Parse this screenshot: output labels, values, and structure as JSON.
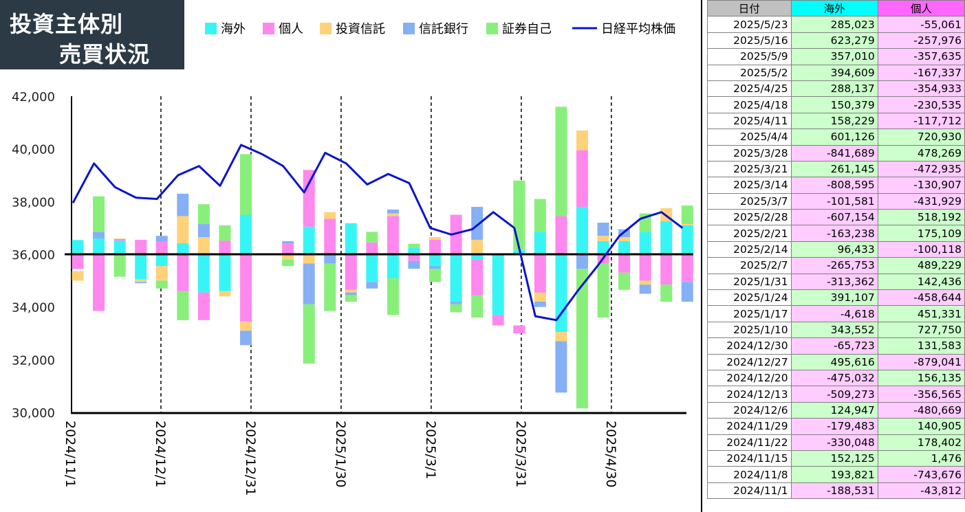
{
  "title": {
    "line1": "投資主体別",
    "line2": "売買状況"
  },
  "colors": {
    "foreign": "#38f5f5",
    "individual": "#ff88ee",
    "trust": "#ffd27a",
    "trust_bank": "#86b0f5",
    "securities": "#88f07a",
    "nikkei": "#0a14cc",
    "positive_cell": "#ccffcc",
    "negative_cell": "#ffccff"
  },
  "chart_data": {
    "type": "bar",
    "stacked": true,
    "legend": [
      {
        "name": "海外",
        "color": "#38f5f5"
      },
      {
        "name": "個人",
        "color": "#ff88ee"
      },
      {
        "name": "投資信託",
        "color": "#ffd27a"
      },
      {
        "name": "信託銀行",
        "color": "#86b0f5"
      },
      {
        "name": "証券自己",
        "color": "#88f07a"
      },
      {
        "name": "日経平均株価",
        "color": "#0a14cc",
        "kind": "line"
      }
    ],
    "legend_position": "top",
    "y_axis": {
      "min": 30000,
      "max": 42000,
      "ticks": [
        "30,000",
        "32,000",
        "34,000",
        "36,000",
        "38,000",
        "40,000",
        "42,000"
      ],
      "baseline": 36000
    },
    "x_tick_labels": [
      "2024/11/1",
      "2024/12/1",
      "2024/12/31",
      "2025/1/30",
      "2025/3/1",
      "2025/3/31",
      "2025/4/30"
    ],
    "x_domain_days": 205,
    "weeks": [
      "2024/11/1",
      "2024/11/8",
      "2024/11/15",
      "2024/11/22",
      "2024/11/29",
      "2024/12/6",
      "2024/12/13",
      "2024/12/20",
      "2024/12/27",
      "2025/1/10",
      "2025/1/17",
      "2025/1/24",
      "2025/1/31",
      "2025/2/7",
      "2025/2/14",
      "2025/2/21",
      "2025/2/28",
      "2025/3/7",
      "2025/3/14",
      "2025/3/21",
      "2025/3/28",
      "2025/4/4",
      "2025/4/11",
      "2025/4/18",
      "2025/4/25",
      "2025/5/2",
      "2025/5/9",
      "2025/5/16",
      "2025/5/23"
    ],
    "week_offset_days": [
      0,
      7,
      14,
      21,
      28,
      35,
      42,
      49,
      56,
      70,
      77,
      84,
      91,
      98,
      105,
      112,
      119,
      126,
      133,
      140,
      147,
      154,
      161,
      168,
      175,
      182,
      189,
      196,
      203
    ],
    "bars_y_value": [
      [
        [
          36000,
          36540
        ],
        [
          35440,
          36000
        ],
        [
          35000,
          35360
        ],
        [
          36000,
          36000
        ],
        [
          35000,
          35000
        ]
      ],
      [
        [
          36000,
          36600
        ],
        [
          33850,
          36000
        ],
        [
          36000,
          36000
        ],
        [
          36600,
          36850
        ],
        [
          36850,
          38200
        ]
      ],
      [
        [
          36000,
          36520
        ],
        [
          36520,
          36580
        ],
        [
          36580,
          36600
        ],
        [
          36000,
          36000
        ],
        [
          35150,
          36000
        ]
      ],
      [
        [
          35050,
          36000
        ],
        [
          36000,
          36550
        ],
        [
          34950,
          35050
        ],
        [
          34900,
          34950
        ],
        [
          36000,
          36000
        ]
      ],
      [
        [
          35550,
          36000
        ],
        [
          36000,
          36480
        ],
        [
          35000,
          35550
        ],
        [
          36480,
          36700
        ],
        [
          34700,
          35000
        ]
      ],
      [
        [
          36000,
          36420
        ],
        [
          34600,
          36000
        ],
        [
          36420,
          37450
        ],
        [
          37450,
          38300
        ],
        [
          33500,
          34600
        ]
      ],
      [
        [
          34550,
          36000
        ],
        [
          33500,
          34550
        ],
        [
          36000,
          36650
        ],
        [
          36650,
          37150
        ],
        [
          37150,
          37900
        ]
      ],
      [
        [
          34600,
          36000
        ],
        [
          36000,
          36520
        ],
        [
          34400,
          34600
        ],
        [
          36000,
          36000
        ],
        [
          36520,
          37100
        ]
      ],
      [
        [
          36000,
          37500
        ],
        [
          33450,
          36000
        ],
        [
          33100,
          33450
        ],
        [
          32550,
          33100
        ],
        [
          37500,
          39800
        ]
      ],
      [
        [
          36000,
          36000
        ],
        [
          36000,
          36400
        ],
        [
          35800,
          36000
        ],
        [
          36400,
          36500
        ],
        [
          35550,
          35800
        ]
      ],
      [
        [
          36000,
          37050
        ],
        [
          37050,
          39200
        ],
        [
          35650,
          36000
        ],
        [
          34100,
          35650
        ],
        [
          31850,
          34100
        ]
      ],
      [
        [
          36000,
          36000
        ],
        [
          36000,
          37350
        ],
        [
          37350,
          37600
        ],
        [
          35650,
          36000
        ],
        [
          33850,
          35650
        ]
      ],
      [
        [
          36000,
          37180
        ],
        [
          34650,
          36000
        ],
        [
          34550,
          34650
        ],
        [
          34450,
          34550
        ],
        [
          34200,
          34450
        ]
      ],
      [
        [
          34950,
          36000
        ],
        [
          36000,
          36450
        ],
        [
          36450,
          36450
        ],
        [
          34700,
          34950
        ],
        [
          36450,
          36850
        ]
      ],
      [
        [
          35100,
          36000
        ],
        [
          36000,
          37450
        ],
        [
          37450,
          37550
        ],
        [
          37550,
          37700
        ],
        [
          33700,
          35100
        ]
      ],
      [
        [
          36000,
          36250
        ],
        [
          35750,
          36000
        ],
        [
          36000,
          36000
        ],
        [
          35450,
          35750
        ],
        [
          36250,
          36400
        ]
      ],
      [
        [
          35450,
          36000
        ],
        [
          36000,
          36550
        ],
        [
          36550,
          36650
        ],
        [
          35550,
          35450
        ],
        [
          34950,
          35450
        ]
      ],
      [
        [
          34200,
          36000
        ],
        [
          36000,
          37500
        ],
        [
          36000,
          36000
        ],
        [
          34100,
          34200
        ],
        [
          33800,
          34100
        ]
      ],
      [
        [
          35800,
          36000
        ],
        [
          34450,
          35800
        ],
        [
          36000,
          36550
        ],
        [
          36550,
          37800
        ],
        [
          33600,
          34450
        ]
      ],
      [
        [
          33700,
          36000
        ],
        [
          33300,
          33700
        ],
        [
          36000,
          36000
        ],
        [
          36000,
          36000
        ],
        [
          36000,
          36000
        ]
      ],
      [
        [
          36000,
          36150
        ],
        [
          33000,
          33300
        ],
        [
          36150,
          36150
        ],
        [
          36000,
          36000
        ],
        [
          36150,
          38800
        ]
      ],
      [
        [
          36000,
          36850
        ],
        [
          34550,
          36000
        ],
        [
          34200,
          34550
        ],
        [
          34000,
          34200
        ],
        [
          36850,
          38100
        ]
      ],
      [
        [
          33050,
          36000
        ],
        [
          36000,
          37450
        ],
        [
          32700,
          33050
        ],
        [
          30750,
          32700
        ],
        [
          37450,
          41600
        ]
      ],
      [
        [
          36000,
          37800
        ],
        [
          37800,
          39950
        ],
        [
          39950,
          40700
        ],
        [
          35450,
          36000
        ],
        [
          30150,
          35450
        ]
      ],
      [
        [
          36000,
          36500
        ],
        [
          35650,
          36000
        ],
        [
          36500,
          36700
        ],
        [
          36700,
          37200
        ],
        [
          33600,
          35650
        ]
      ],
      [
        [
          36000,
          36500
        ],
        [
          35300,
          36000
        ],
        [
          36500,
          36650
        ],
        [
          36650,
          36950
        ],
        [
          34650,
          35300
        ]
      ],
      [
        [
          36000,
          36850
        ],
        [
          35000,
          36000
        ],
        [
          34850,
          35000
        ],
        [
          34500,
          34850
        ],
        [
          36850,
          37550
        ]
      ],
      [
        [
          36000,
          37250
        ],
        [
          34850,
          36000
        ],
        [
          37250,
          37750
        ],
        [
          36000,
          36000
        ],
        [
          34200,
          34850
        ]
      ],
      [
        [
          36000,
          37100
        ],
        [
          34950,
          36000
        ],
        [
          37100,
          37150
        ],
        [
          34200,
          34950
        ],
        [
          37150,
          37850
        ]
      ]
    ],
    "nikkei": [
      37950,
      39450,
      38550,
      38150,
      38100,
      39000,
      39350,
      38600,
      40150,
      39800,
      39350,
      38350,
      39850,
      39450,
      38650,
      39050,
      38700,
      37000,
      36750,
      36950,
      37600,
      37000,
      33650,
      33500,
      34600,
      35600,
      36700,
      37350,
      37600,
      37000
    ],
    "nikkei_offset_days": [
      0,
      7,
      14,
      21,
      28,
      35,
      42,
      49,
      56,
      63,
      70,
      77,
      84,
      91,
      98,
      105,
      112,
      119,
      126,
      133,
      140,
      147,
      154,
      161,
      168,
      175,
      182,
      189,
      196,
      203
    ]
  },
  "table": {
    "headers": [
      "日付",
      "海外",
      "個人"
    ],
    "rows": [
      [
        "2025/5/23",
        "285,023",
        "-55,061"
      ],
      [
        "2025/5/16",
        "623,279",
        "-257,976"
      ],
      [
        "2025/5/9",
        "357,010",
        "-357,635"
      ],
      [
        "2025/5/2",
        "394,609",
        "-167,337"
      ],
      [
        "2025/4/25",
        "288,137",
        "-354,933"
      ],
      [
        "2025/4/18",
        "150,379",
        "-230,535"
      ],
      [
        "2025/4/11",
        "158,229",
        "-117,712"
      ],
      [
        "2025/4/4",
        "601,126",
        "720,930"
      ],
      [
        "2025/3/28",
        "-841,689",
        "478,269"
      ],
      [
        "2025/3/21",
        "261,145",
        "-472,935"
      ],
      [
        "2025/3/14",
        "-808,595",
        "-130,907"
      ],
      [
        "2025/3/7",
        "-101,581",
        "-431,929"
      ],
      [
        "2025/2/28",
        "-607,154",
        "518,192"
      ],
      [
        "2025/2/21",
        "-163,238",
        "175,109"
      ],
      [
        "2025/2/14",
        "96,433",
        "-100,118"
      ],
      [
        "2025/2/7",
        "-265,753",
        "489,229"
      ],
      [
        "2025/1/31",
        "-313,362",
        "142,436"
      ],
      [
        "2025/1/24",
        "391,107",
        "-458,644"
      ],
      [
        "2025/1/17",
        "-4,618",
        "451,331"
      ],
      [
        "2025/1/10",
        "343,552",
        "727,750"
      ],
      [
        "2024/12/30",
        "-65,723",
        "131,583"
      ],
      [
        "2024/12/27",
        "495,616",
        "-879,041"
      ],
      [
        "2024/12/20",
        "-475,032",
        "156,135"
      ],
      [
        "2024/12/13",
        "-509,273",
        "-356,565"
      ],
      [
        "2024/12/6",
        "124,947",
        "-480,669"
      ],
      [
        "2024/11/29",
        "-179,483",
        "140,905"
      ],
      [
        "2024/11/22",
        "-330,048",
        "178,402"
      ],
      [
        "2024/11/15",
        "152,125",
        "1,476"
      ],
      [
        "2024/11/8",
        "193,821",
        "-743,676"
      ],
      [
        "2024/11/1",
        "-188,531",
        "-43,812"
      ]
    ]
  }
}
